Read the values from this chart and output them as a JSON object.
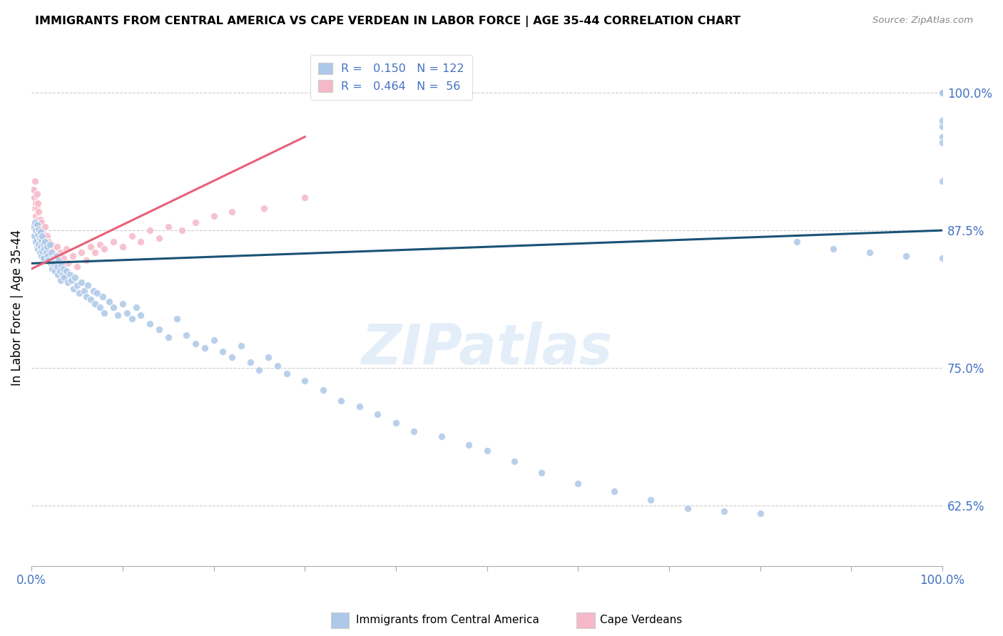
{
  "title": "IMMIGRANTS FROM CENTRAL AMERICA VS CAPE VERDEAN IN LABOR FORCE | AGE 35-44 CORRELATION CHART",
  "source": "Source: ZipAtlas.com",
  "ylabel": "In Labor Force | Age 35-44",
  "yticks": [
    0.625,
    0.75,
    0.875,
    1.0
  ],
  "ytick_labels": [
    "62.5%",
    "75.0%",
    "87.5%",
    "100.0%"
  ],
  "blue_R": 0.15,
  "blue_N": 122,
  "pink_R": 0.464,
  "pink_N": 56,
  "blue_color": "#adc8e8",
  "pink_color": "#f5b8c8",
  "blue_line_color": "#1a5276",
  "pink_line_color": "#e8607a",
  "legend_label_blue": "Immigrants from Central America",
  "legend_label_pink": "Cape Verdeans",
  "watermark": "ZIPatlas",
  "blue_scatter_x": [
    0.002,
    0.003,
    0.004,
    0.005,
    0.005,
    0.006,
    0.006,
    0.007,
    0.007,
    0.008,
    0.008,
    0.009,
    0.009,
    0.01,
    0.01,
    0.011,
    0.011,
    0.012,
    0.012,
    0.013,
    0.013,
    0.014,
    0.015,
    0.016,
    0.017,
    0.018,
    0.019,
    0.02,
    0.021,
    0.022,
    0.023,
    0.024,
    0.025,
    0.026,
    0.027,
    0.028,
    0.029,
    0.03,
    0.031,
    0.032,
    0.033,
    0.034,
    0.035,
    0.036,
    0.038,
    0.04,
    0.042,
    0.044,
    0.046,
    0.048,
    0.05,
    0.052,
    0.055,
    0.058,
    0.06,
    0.062,
    0.065,
    0.068,
    0.07,
    0.072,
    0.075,
    0.078,
    0.08,
    0.085,
    0.09,
    0.095,
    0.1,
    0.105,
    0.11,
    0.115,
    0.12,
    0.13,
    0.14,
    0.15,
    0.16,
    0.17,
    0.18,
    0.19,
    0.2,
    0.21,
    0.22,
    0.23,
    0.24,
    0.25,
    0.26,
    0.27,
    0.28,
    0.3,
    0.32,
    0.34,
    0.36,
    0.38,
    0.4,
    0.42,
    0.45,
    0.48,
    0.5,
    0.53,
    0.56,
    0.6,
    0.64,
    0.68,
    0.72,
    0.76,
    0.8,
    0.84,
    0.88,
    0.92,
    0.96,
    1.0,
    1.0,
    1.0,
    1.0,
    1.0,
    1.0,
    1.0,
    1.0,
    1.0,
    1.0,
    1.0,
    1.0,
    1.0
  ],
  "blue_scatter_y": [
    0.878,
    0.87,
    0.882,
    0.875,
    0.865,
    0.88,
    0.86,
    0.872,
    0.858,
    0.876,
    0.862,
    0.868,
    0.855,
    0.874,
    0.86,
    0.866,
    0.852,
    0.87,
    0.856,
    0.862,
    0.85,
    0.858,
    0.865,
    0.855,
    0.86,
    0.852,
    0.848,
    0.862,
    0.845,
    0.855,
    0.84,
    0.85,
    0.845,
    0.838,
    0.852,
    0.842,
    0.835,
    0.848,
    0.838,
    0.83,
    0.844,
    0.835,
    0.84,
    0.832,
    0.838,
    0.828,
    0.835,
    0.83,
    0.822,
    0.832,
    0.825,
    0.818,
    0.828,
    0.82,
    0.815,
    0.825,
    0.812,
    0.82,
    0.808,
    0.818,
    0.805,
    0.815,
    0.8,
    0.81,
    0.805,
    0.798,
    0.808,
    0.8,
    0.795,
    0.805,
    0.798,
    0.79,
    0.785,
    0.778,
    0.795,
    0.78,
    0.772,
    0.768,
    0.775,
    0.765,
    0.76,
    0.77,
    0.755,
    0.748,
    0.76,
    0.752,
    0.745,
    0.738,
    0.73,
    0.72,
    0.715,
    0.708,
    0.7,
    0.692,
    0.688,
    0.68,
    0.675,
    0.665,
    0.655,
    0.645,
    0.638,
    0.63,
    0.622,
    0.62,
    0.618,
    0.865,
    0.858,
    0.855,
    0.852,
    0.85,
    1.0,
    1.0,
    1.0,
    1.0,
    1.0,
    1.0,
    1.0,
    0.96,
    0.955,
    0.97,
    0.975,
    0.92
  ],
  "pink_scatter_x": [
    0.002,
    0.003,
    0.004,
    0.004,
    0.005,
    0.005,
    0.006,
    0.006,
    0.007,
    0.007,
    0.008,
    0.008,
    0.009,
    0.01,
    0.01,
    0.011,
    0.011,
    0.012,
    0.013,
    0.014,
    0.015,
    0.016,
    0.017,
    0.018,
    0.019,
    0.02,
    0.022,
    0.024,
    0.026,
    0.028,
    0.03,
    0.032,
    0.035,
    0.038,
    0.04,
    0.045,
    0.05,
    0.055,
    0.06,
    0.065,
    0.07,
    0.075,
    0.08,
    0.09,
    0.1,
    0.11,
    0.12,
    0.13,
    0.14,
    0.15,
    0.165,
    0.18,
    0.2,
    0.22,
    0.255,
    0.3
  ],
  "pink_scatter_y": [
    0.912,
    0.905,
    0.895,
    0.92,
    0.9,
    0.888,
    0.895,
    0.908,
    0.885,
    0.9,
    0.878,
    0.892,
    0.875,
    0.885,
    0.87,
    0.882,
    0.868,
    0.875,
    0.872,
    0.865,
    0.878,
    0.862,
    0.87,
    0.858,
    0.865,
    0.855,
    0.862,
    0.858,
    0.852,
    0.86,
    0.848,
    0.855,
    0.85,
    0.858,
    0.845,
    0.852,
    0.842,
    0.855,
    0.848,
    0.86,
    0.855,
    0.862,
    0.858,
    0.865,
    0.86,
    0.87,
    0.865,
    0.875,
    0.868,
    0.878,
    0.875,
    0.882,
    0.888,
    0.892,
    0.895,
    0.905
  ],
  "blue_line_x_start": 0.0,
  "blue_line_x_end": 1.0,
  "blue_line_y_start": 0.845,
  "blue_line_y_end": 0.875,
  "pink_line_x_start": 0.0,
  "pink_line_x_end": 0.3,
  "pink_line_y_start": 0.84,
  "pink_line_y_end": 0.96,
  "xlim": [
    0.0,
    1.0
  ],
  "ylim": [
    0.57,
    1.04
  ],
  "xtick_positions": [
    0.0,
    0.1,
    0.2,
    0.3,
    0.4,
    0.5,
    0.6,
    0.7,
    0.8,
    0.9,
    1.0
  ]
}
